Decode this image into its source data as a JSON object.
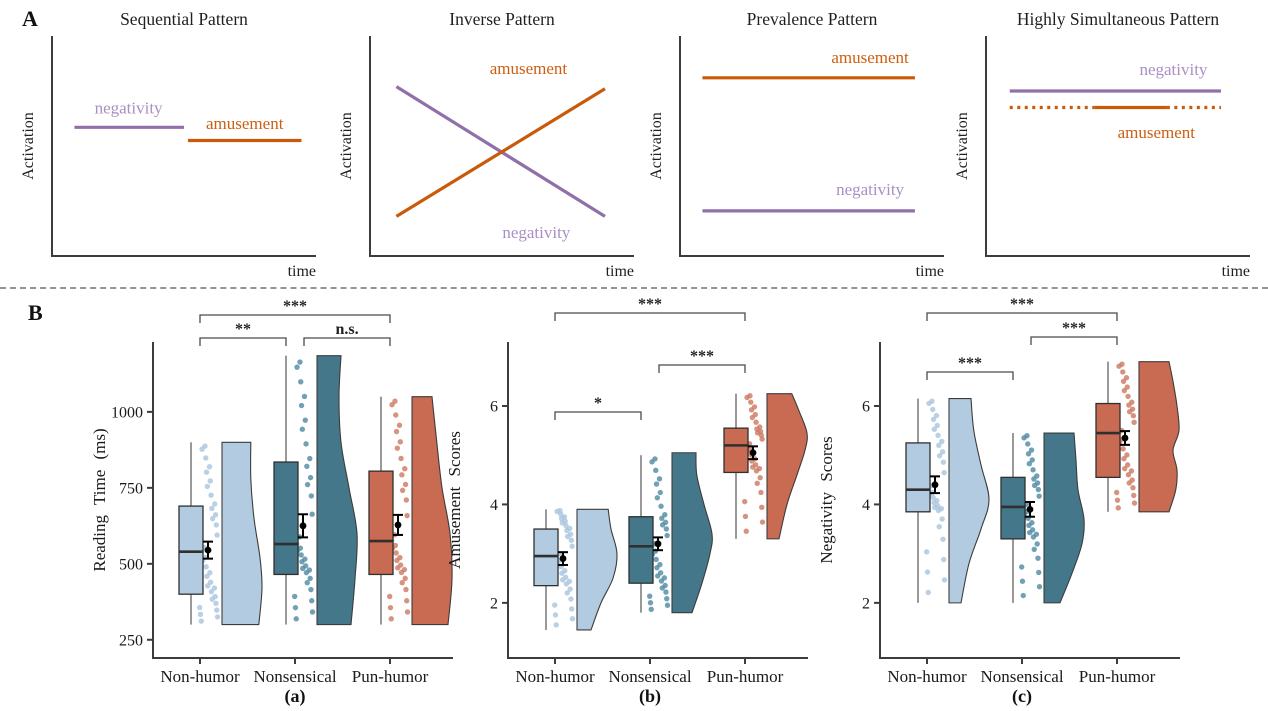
{
  "style": {
    "negativity_line": "#9070a8",
    "negativity_text": "#a88fc4",
    "amusement_line": "#c85a0a",
    "amusement_text": "#cc5f12",
    "axis": "#3c3c3c",
    "title_text": "#1f1f1f",
    "tick_text": "#1a1a1a",
    "bracket": "#4a4a4a",
    "divider": "#949494",
    "group_fills": [
      "#b3cbe0",
      "#44778a",
      "#c96a52"
    ],
    "group_dots": [
      "#a8c4de",
      "#4f88a1",
      "#cc7860"
    ],
    "box_outline": "#2f2f2f",
    "mean_marker": "#000000"
  },
  "panel_a": {
    "label": "A",
    "y_axis_label": "Activation",
    "x_axis_label": "time"
  },
  "panel_b": {
    "label": "B",
    "categories": [
      "Non-humor",
      "Nonsensical",
      "Pun-humor"
    ]
  },
  "chart_data": {
    "panel_a_diagrams": [
      {
        "type": "line",
        "title": "Sequential Pattern",
        "xlabel": "time",
        "ylabel": "Activation",
        "lines": [
          {
            "series": "negativity",
            "dash": "solid",
            "x1": 0.085,
            "y1": 0.415,
            "x2": 0.5,
            "y2": 0.415
          },
          {
            "series": "amusement",
            "dash": "solid",
            "x1": 0.515,
            "y1": 0.475,
            "x2": 0.945,
            "y2": 0.475
          }
        ],
        "labels": [
          {
            "text": "negativity",
            "series": "negativity",
            "fx": 0.29,
            "fy": 0.335
          },
          {
            "text": "amusement",
            "series": "amusement",
            "fx": 0.73,
            "fy": 0.405
          }
        ]
      },
      {
        "type": "line",
        "title": "Inverse Pattern",
        "xlabel": "time",
        "ylabel": "Activation",
        "lines": [
          {
            "series": "negativity",
            "dash": "solid",
            "x1": 0.1,
            "y1": 0.23,
            "x2": 0.89,
            "y2": 0.82
          },
          {
            "series": "amusement",
            "dash": "solid",
            "x1": 0.1,
            "y1": 0.82,
            "x2": 0.89,
            "y2": 0.24
          }
        ],
        "labels": [
          {
            "text": "amusement",
            "series": "amusement",
            "fx": 0.6,
            "fy": 0.155
          },
          {
            "text": "negativity",
            "series": "negativity",
            "fx": 0.63,
            "fy": 0.9
          }
        ]
      },
      {
        "type": "line",
        "title": "Prevalence Pattern",
        "xlabel": "time",
        "ylabel": "Activation",
        "lines": [
          {
            "series": "amusement",
            "dash": "solid",
            "x1": 0.085,
            "y1": 0.19,
            "x2": 0.89,
            "y2": 0.19
          },
          {
            "series": "negativity",
            "dash": "solid",
            "x1": 0.085,
            "y1": 0.795,
            "x2": 0.89,
            "y2": 0.795
          }
        ],
        "labels": [
          {
            "text": "amusement",
            "series": "amusement",
            "fx": 0.72,
            "fy": 0.105
          },
          {
            "text": "negativity",
            "series": "negativity",
            "fx": 0.72,
            "fy": 0.705
          }
        ]
      },
      {
        "type": "line",
        "title": "Highly Simultaneous Pattern",
        "xlabel": "time",
        "ylabel": "Activation",
        "lines": [
          {
            "series": "negativity",
            "dash": "solid",
            "x1": 0.09,
            "y1": 0.25,
            "x2": 0.89,
            "y2": 0.25
          },
          {
            "series": "amusement",
            "dash": "dotted",
            "x1": 0.09,
            "y1": 0.325,
            "x2": 0.41,
            "y2": 0.325
          },
          {
            "series": "amusement",
            "dash": "solid",
            "x1": 0.41,
            "y1": 0.325,
            "x2": 0.685,
            "y2": 0.325
          },
          {
            "series": "amusement",
            "dash": "dotted",
            "x1": 0.685,
            "y1": 0.325,
            "x2": 0.89,
            "y2": 0.325
          }
        ],
        "labels": [
          {
            "text": "negativity",
            "series": "negativity",
            "fx": 0.71,
            "fy": 0.16
          },
          {
            "text": "amusement",
            "series": "amusement",
            "fx": 0.645,
            "fy": 0.445
          }
        ]
      }
    ],
    "panel_b_rainclouds": [
      {
        "type": "raincloud-box",
        "id": "a",
        "caption": "(a)",
        "ylabel": "Reading Time (ms)",
        "ymin": 190,
        "ymax": 1230,
        "yticks": [
          250,
          500,
          750,
          1000
        ],
        "categories": [
          "Non-humor",
          "Nonsensical",
          "Pun-humor"
        ],
        "groups": [
          {
            "name": "Non-humor",
            "whisker_low": 300,
            "q1": 400,
            "median": 540,
            "q3": 690,
            "whisker_high": 900,
            "mean": 545,
            "se": 28,
            "n": 36,
            "violin": [
              [
                300,
                0.92
              ],
              [
                420,
                1.0
              ],
              [
                520,
                0.95
              ],
              [
                650,
                0.8
              ],
              [
                780,
                0.72
              ],
              [
                900,
                0.72
              ]
            ]
          },
          {
            "name": "Nonsensical",
            "whisker_low": 300,
            "q1": 465,
            "median": 565,
            "q3": 835,
            "whisker_high": 1185,
            "mean": 625,
            "se": 38,
            "n": 36,
            "violin": [
              [
                300,
                0.85
              ],
              [
                450,
                0.95
              ],
              [
                600,
                1.0
              ],
              [
                750,
                0.8
              ],
              [
                900,
                0.6
              ],
              [
                1050,
                0.55
              ],
              [
                1185,
                0.6
              ]
            ]
          },
          {
            "name": "Pun-humor",
            "whisker_low": 300,
            "q1": 465,
            "median": 575,
            "q3": 805,
            "whisker_high": 1050,
            "mean": 628,
            "se": 33,
            "n": 36,
            "violin": [
              [
                300,
                0.9
              ],
              [
                450,
                1.0
              ],
              [
                600,
                0.95
              ],
              [
                750,
                0.75
              ],
              [
                900,
                0.62
              ],
              [
                1050,
                0.5
              ]
            ]
          }
        ],
        "significance": [
          {
            "from": 0,
            "to": 2,
            "label": "***",
            "y": 17
          },
          {
            "from": 0,
            "to": 1,
            "label": "**",
            "y": 40,
            "x2_inset": -9
          },
          {
            "from": 1,
            "to": 2,
            "label": "n.s.",
            "y": 40,
            "x1_inset": 9
          }
        ]
      },
      {
        "type": "raincloud-box",
        "id": "b",
        "caption": "(b)",
        "ylabel": "Amusement Scores",
        "ymin": 0.88,
        "ymax": 7.3,
        "yticks": [
          2,
          4,
          6
        ],
        "categories": [
          "Non-humor",
          "Nonsensical",
          "Pun-humor"
        ],
        "groups": [
          {
            "name": "Non-humor",
            "whisker_low": 1.45,
            "q1": 2.35,
            "median": 2.95,
            "q3": 3.5,
            "whisker_high": 3.9,
            "mean": 2.9,
            "se": 0.13,
            "n": 36,
            "violin": [
              [
                1.45,
                0.35
              ],
              [
                2.0,
                0.6
              ],
              [
                2.5,
                0.9
              ],
              [
                3.0,
                1.0
              ],
              [
                3.5,
                0.85
              ],
              [
                3.9,
                0.78
              ]
            ]
          },
          {
            "name": "Nonsensical",
            "whisker_low": 1.8,
            "q1": 2.4,
            "median": 3.15,
            "q3": 3.75,
            "whisker_high": 5.0,
            "mean": 3.2,
            "se": 0.13,
            "n": 36,
            "violin": [
              [
                1.8,
                0.5
              ],
              [
                2.4,
                0.75
              ],
              [
                3.0,
                0.95
              ],
              [
                3.4,
                1.0
              ],
              [
                4.0,
                0.8
              ],
              [
                4.6,
                0.62
              ],
              [
                5.05,
                0.6
              ]
            ]
          },
          {
            "name": "Pun-humor",
            "whisker_low": 3.3,
            "q1": 4.65,
            "median": 5.2,
            "q3": 5.55,
            "whisker_high": 6.25,
            "mean": 5.05,
            "se": 0.13,
            "n": 36,
            "violin": [
              [
                3.3,
                0.3
              ],
              [
                4.0,
                0.5
              ],
              [
                4.6,
                0.75
              ],
              [
                5.1,
                0.95
              ],
              [
                5.45,
                1.0
              ],
              [
                5.9,
                0.8
              ],
              [
                6.25,
                0.62
              ]
            ]
          }
        ],
        "significance": [
          {
            "from": 0,
            "to": 2,
            "label": "***",
            "y": 15
          },
          {
            "from": 1,
            "to": 2,
            "label": "***",
            "y": 67,
            "x1_inset": 9
          },
          {
            "from": 0,
            "to": 1,
            "label": "*",
            "y": 114,
            "x2_inset": -9
          }
        ]
      },
      {
        "type": "raincloud-box",
        "id": "c",
        "caption": "(c)",
        "ylabel": "Negativity Scores",
        "ymin": 0.88,
        "ymax": 7.3,
        "yticks": [
          2,
          4,
          6
        ],
        "categories": [
          "Non-humor",
          "Nonsensical",
          "Pun-humor"
        ],
        "groups": [
          {
            "name": "Non-humor",
            "whisker_low": 2.0,
            "q1": 3.85,
            "median": 4.3,
            "q3": 5.25,
            "whisker_high": 6.15,
            "mean": 4.4,
            "se": 0.17,
            "n": 36,
            "violin": [
              [
                2.0,
                0.3
              ],
              [
                2.8,
                0.5
              ],
              [
                3.5,
                0.8
              ],
              [
                4.1,
                1.0
              ],
              [
                4.8,
                0.8
              ],
              [
                5.5,
                0.62
              ],
              [
                6.15,
                0.55
              ]
            ]
          },
          {
            "name": "Nonsensical",
            "whisker_low": 2.0,
            "q1": 3.3,
            "median": 3.95,
            "q3": 4.55,
            "whisker_high": 5.45,
            "mean": 3.9,
            "se": 0.15,
            "n": 36,
            "violin": [
              [
                2.0,
                0.4
              ],
              [
                2.6,
                0.7
              ],
              [
                3.2,
                0.95
              ],
              [
                3.7,
                1.0
              ],
              [
                4.3,
                0.85
              ],
              [
                4.9,
                0.8
              ],
              [
                5.45,
                0.75
              ]
            ]
          },
          {
            "name": "Pun-humor",
            "whisker_low": 3.85,
            "q1": 4.55,
            "median": 5.45,
            "q3": 6.05,
            "whisker_high": 6.9,
            "mean": 5.35,
            "se": 0.14,
            "n": 36,
            "violin": [
              [
                3.85,
                0.75
              ],
              [
                4.3,
                0.92
              ],
              [
                4.7,
                0.95
              ],
              [
                5.1,
                0.85
              ],
              [
                5.5,
                1.0
              ],
              [
                6.0,
                0.95
              ],
              [
                6.5,
                0.85
              ],
              [
                6.9,
                0.75
              ]
            ]
          }
        ],
        "significance": [
          {
            "from": 0,
            "to": 2,
            "label": "***",
            "y": 15
          },
          {
            "from": 1,
            "to": 2,
            "label": "***",
            "y": 39,
            "x1_inset": 9
          },
          {
            "from": 0,
            "to": 1,
            "label": "***",
            "y": 74,
            "x2_inset": -9
          }
        ]
      }
    ]
  }
}
